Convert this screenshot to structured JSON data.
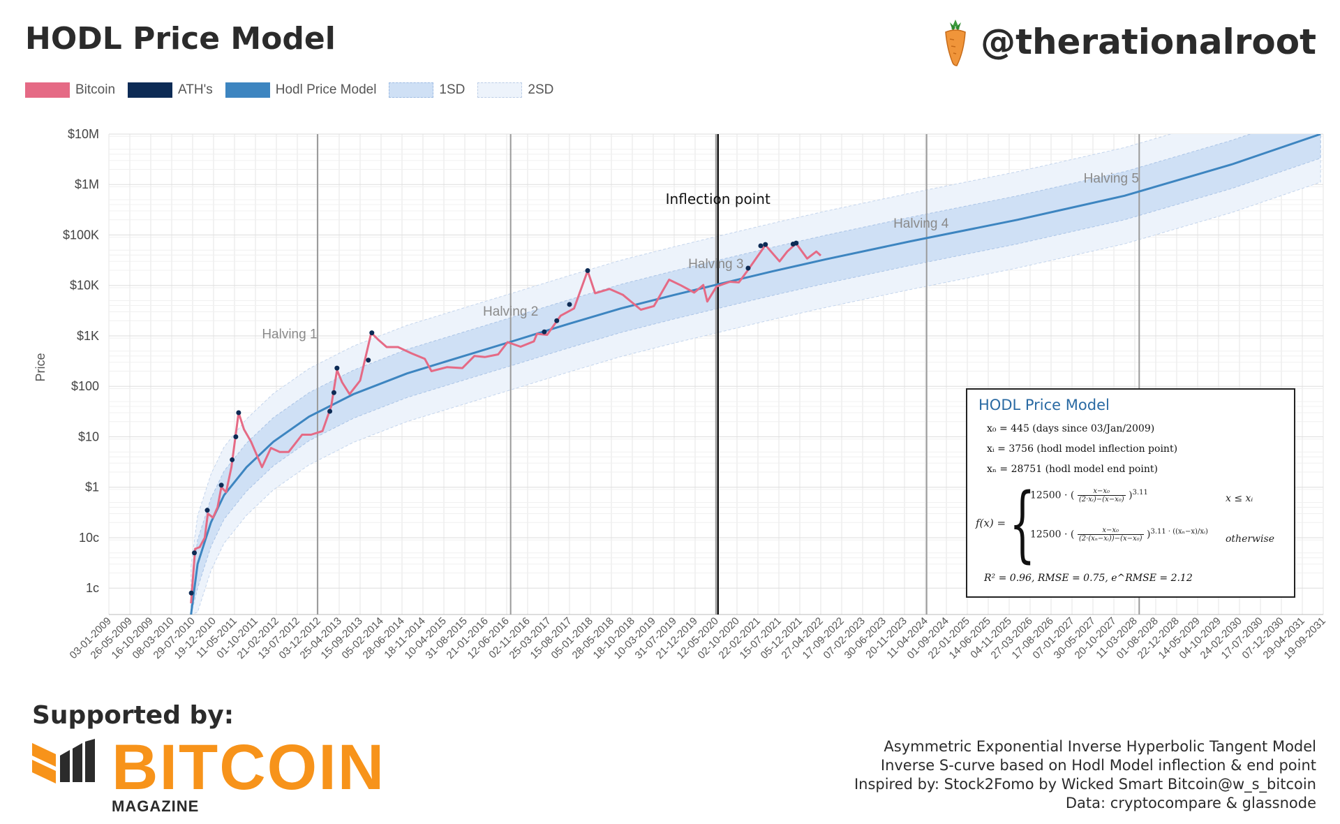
{
  "header": {
    "title": "HODL Price Model",
    "handle": "@therationalroot"
  },
  "legend": {
    "items": [
      "Bitcoin",
      "ATH's",
      "Hodl Price Model",
      "1SD",
      "2SD"
    ]
  },
  "colors": {
    "bitcoin": "#e56a85",
    "ath": "#0d2b55",
    "model": "#3d85c0",
    "band_1sd": "#cfe0f5",
    "band_2sd": "#edf3fb"
  },
  "chart_data": {
    "type": "line",
    "y_scale": "log",
    "ylabel": "Price",
    "y_ticks": [
      {
        "value": 0.01,
        "label": "1c"
      },
      {
        "value": 0.1,
        "label": "10c"
      },
      {
        "value": 1,
        "label": "$1"
      },
      {
        "value": 10,
        "label": "$10"
      },
      {
        "value": 100,
        "label": "$100"
      },
      {
        "value": 1000,
        "label": "$1K"
      },
      {
        "value": 10000,
        "label": "$10K"
      },
      {
        "value": 100000,
        "label": "$100K"
      },
      {
        "value": 1000000,
        "label": "$1M"
      },
      {
        "value": 10000000,
        "label": "$10M"
      }
    ],
    "ylim": [
      0.003,
      10000000
    ],
    "xlim": [
      "2009-01-03",
      "2031-09-19"
    ],
    "x_ticks": [
      "03-01-2009",
      "26-05-2009",
      "16-10-2009",
      "08-03-2010",
      "29-07-2010",
      "19-12-2010",
      "11-05-2011",
      "01-10-2011",
      "21-02-2012",
      "13-07-2012",
      "03-12-2012",
      "25-04-2013",
      "15-09-2013",
      "05-02-2014",
      "28-06-2014",
      "18-11-2014",
      "10-04-2015",
      "31-08-2015",
      "21-01-2016",
      "12-06-2016",
      "02-11-2016",
      "25-03-2017",
      "15-08-2017",
      "05-01-2018",
      "28-05-2018",
      "18-10-2018",
      "10-03-2019",
      "31-07-2019",
      "21-12-2019",
      "12-05-2020",
      "02-10-2020",
      "22-02-2021",
      "15-07-2021",
      "05-12-2021",
      "27-04-2022",
      "17-09-2022",
      "07-02-2023",
      "30-06-2023",
      "20-11-2023",
      "11-04-2024",
      "01-09-2024",
      "22-01-2025",
      "14-06-2025",
      "04-11-2025",
      "27-03-2026",
      "17-08-2026",
      "07-01-2027",
      "30-05-2027",
      "20-10-2027",
      "11-03-2028",
      "01-08-2028",
      "22-12-2028",
      "14-05-2029",
      "04-10-2029",
      "24-02-2030",
      "17-07-2030",
      "07-12-2030",
      "29-04-2031",
      "19-09-2031"
    ],
    "grid": true,
    "legend_position": "top-left",
    "vertical_lines": [
      {
        "date": "2012-11-28",
        "label": "Halving 1"
      },
      {
        "date": "2016-07-09",
        "label": "Halving 2"
      },
      {
        "date": "2020-05-11",
        "label": "Halving 3"
      },
      {
        "date": "2024-04-19",
        "label": "Halving 4"
      },
      {
        "date": "2028-04-10",
        "label": "Halving 5"
      }
    ],
    "inflection": {
      "date": "2019-04-15",
      "label": "Inflection point"
    },
    "inflection_line_date": "2020-05-25",
    "model_points": [
      {
        "date": "2010-07-18",
        "value": 0.003
      },
      {
        "date": "2010-09-01",
        "value": 0.03
      },
      {
        "date": "2010-12-01",
        "value": 0.2
      },
      {
        "date": "2011-03-01",
        "value": 0.7
      },
      {
        "date": "2011-08-01",
        "value": 2.5
      },
      {
        "date": "2012-02-01",
        "value": 8
      },
      {
        "date": "2012-10-01",
        "value": 25
      },
      {
        "date": "2013-08-01",
        "value": 70
      },
      {
        "date": "2014-08-01",
        "value": 180
      },
      {
        "date": "2015-08-01",
        "value": 380
      },
      {
        "date": "2016-08-01",
        "value": 800
      },
      {
        "date": "2017-08-01",
        "value": 1700
      },
      {
        "date": "2018-08-01",
        "value": 3500
      },
      {
        "date": "2019-08-01",
        "value": 6500
      },
      {
        "date": "2020-05-25",
        "value": 10500
      },
      {
        "date": "2021-06-01",
        "value": 19000
      },
      {
        "date": "2022-06-01",
        "value": 33000
      },
      {
        "date": "2024-01-01",
        "value": 75000
      },
      {
        "date": "2026-01-01",
        "value": 200000
      },
      {
        "date": "2028-01-01",
        "value": 600000
      },
      {
        "date": "2030-01-01",
        "value": 2500000
      },
      {
        "date": "2031-09-01",
        "value": 10000000
      }
    ],
    "sd1_factor": 3.0,
    "sd2_factor": 9.0,
    "bitcoin_series": [
      {
        "date": "2010-07-18",
        "value": 0.005
      },
      {
        "date": "2010-08-15",
        "value": 0.06
      },
      {
        "date": "2010-09-15",
        "value": 0.065
      },
      {
        "date": "2010-10-20",
        "value": 0.1
      },
      {
        "date": "2010-11-10",
        "value": 0.3
      },
      {
        "date": "2010-12-15",
        "value": 0.25
      },
      {
        "date": "2011-01-15",
        "value": 0.4
      },
      {
        "date": "2011-02-10",
        "value": 1.0
      },
      {
        "date": "2011-03-15",
        "value": 0.8
      },
      {
        "date": "2011-04-20",
        "value": 2.5
      },
      {
        "date": "2011-06-08",
        "value": 30
      },
      {
        "date": "2011-07-15",
        "value": 14
      },
      {
        "date": "2011-09-01",
        "value": 8
      },
      {
        "date": "2011-11-15",
        "value": 2.5
      },
      {
        "date": "2012-01-15",
        "value": 6
      },
      {
        "date": "2012-03-15",
        "value": 5
      },
      {
        "date": "2012-05-15",
        "value": 5
      },
      {
        "date": "2012-08-15",
        "value": 11
      },
      {
        "date": "2012-10-15",
        "value": 11
      },
      {
        "date": "2013-01-01",
        "value": 13
      },
      {
        "date": "2013-03-01",
        "value": 40
      },
      {
        "date": "2013-04-10",
        "value": 210
      },
      {
        "date": "2013-05-15",
        "value": 120
      },
      {
        "date": "2013-07-05",
        "value": 70
      },
      {
        "date": "2013-09-15",
        "value": 130
      },
      {
        "date": "2013-11-30",
        "value": 1150
      },
      {
        "date": "2014-01-15",
        "value": 850
      },
      {
        "date": "2014-03-15",
        "value": 600
      },
      {
        "date": "2014-06-01",
        "value": 600
      },
      {
        "date": "2014-09-01",
        "value": 450
      },
      {
        "date": "2014-12-01",
        "value": 350
      },
      {
        "date": "2015-01-15",
        "value": 200
      },
      {
        "date": "2015-05-01",
        "value": 240
      },
      {
        "date": "2015-08-15",
        "value": 230
      },
      {
        "date": "2015-11-05",
        "value": 400
      },
      {
        "date": "2016-01-15",
        "value": 380
      },
      {
        "date": "2016-04-15",
        "value": 430
      },
      {
        "date": "2016-06-18",
        "value": 750
      },
      {
        "date": "2016-09-15",
        "value": 610
      },
      {
        "date": "2016-12-15",
        "value": 780
      },
      {
        "date": "2017-01-05",
        "value": 1100
      },
      {
        "date": "2017-03-15",
        "value": 1050
      },
      {
        "date": "2017-06-15",
        "value": 2500
      },
      {
        "date": "2017-09-15",
        "value": 3500
      },
      {
        "date": "2017-12-17",
        "value": 19500
      },
      {
        "date": "2018-02-06",
        "value": 7000
      },
      {
        "date": "2018-05-15",
        "value": 8500
      },
      {
        "date": "2018-08-15",
        "value": 6500
      },
      {
        "date": "2018-12-15",
        "value": 3300
      },
      {
        "date": "2019-03-15",
        "value": 3900
      },
      {
        "date": "2019-06-26",
        "value": 13000
      },
      {
        "date": "2019-09-15",
        "value": 10000
      },
      {
        "date": "2019-12-15",
        "value": 7200
      },
      {
        "date": "2020-02-15",
        "value": 10200
      },
      {
        "date": "2020-03-13",
        "value": 4800
      },
      {
        "date": "2020-05-15",
        "value": 9500
      },
      {
        "date": "2020-08-15",
        "value": 11800
      },
      {
        "date": "2020-10-15",
        "value": 11500
      },
      {
        "date": "2020-12-15",
        "value": 20000
      },
      {
        "date": "2021-04-14",
        "value": 63000
      },
      {
        "date": "2021-07-20",
        "value": 30000
      },
      {
        "date": "2021-09-10",
        "value": 47000
      },
      {
        "date": "2021-11-10",
        "value": 68000
      },
      {
        "date": "2022-01-24",
        "value": 34000
      },
      {
        "date": "2022-03-28",
        "value": 47000
      },
      {
        "date": "2022-04-27",
        "value": 39000
      }
    ],
    "ath_series": [
      {
        "date": "2010-07-20",
        "value": 0.008
      },
      {
        "date": "2010-08-10",
        "value": 0.05
      },
      {
        "date": "2010-11-06",
        "value": 0.35
      },
      {
        "date": "2011-02-10",
        "value": 1.1
      },
      {
        "date": "2011-04-25",
        "value": 3.5
      },
      {
        "date": "2011-05-20",
        "value": 10
      },
      {
        "date": "2011-06-08",
        "value": 30
      },
      {
        "date": "2013-02-20",
        "value": 32
      },
      {
        "date": "2013-03-20",
        "value": 75
      },
      {
        "date": "2013-04-10",
        "value": 230
      },
      {
        "date": "2013-11-10",
        "value": 330
      },
      {
        "date": "2013-12-04",
        "value": 1150
      },
      {
        "date": "2017-02-24",
        "value": 1200
      },
      {
        "date": "2017-05-20",
        "value": 2000
      },
      {
        "date": "2017-08-15",
        "value": 4200
      },
      {
        "date": "2017-12-17",
        "value": 19700
      },
      {
        "date": "2020-12-17",
        "value": 22000
      },
      {
        "date": "2021-03-13",
        "value": 61000
      },
      {
        "date": "2021-04-14",
        "value": 64800
      },
      {
        "date": "2021-10-20",
        "value": 66000
      },
      {
        "date": "2021-11-10",
        "value": 69000
      }
    ]
  },
  "formula": {
    "title": "HODL Price Model",
    "x0": "x₀  =  445 (days since 03/Jan/2009)",
    "xi": "xᵢ  =  3756 (hodl model inflection point)",
    "xn": "xₙ  =  28751 (hodl model end point)",
    "fx": "f(x) =",
    "case1_coef": "12500 ·",
    "case1_num": "x−x₀",
    "case1_den": "(2·xᵢ)−(x−x₀)",
    "case1_exp": "3.11",
    "case1_cond": "x ≤ xᵢ",
    "case2_coef": "12500 ·",
    "case2_num": "x−x₀",
    "case2_den": "(2·(xₙ−xᵢ))−(x−x₀)",
    "case2_exp": "3.11 · ((xₙ−x)/xᵢ)",
    "case2_cond": "otherwise",
    "fit": "R² = 0.96,   RMSE = 0.75,   e^RMSE = 2.12"
  },
  "footer": {
    "supported": "Supported by:",
    "brand": "BITCOIN",
    "brand_sub": "MAGAZINE",
    "notes": [
      "Asymmetric Exponential Inverse Hyperbolic Tangent Model",
      "Inverse S-curve based on Hodl Model inflection & end point",
      "Inspired by: Stock2Fomo by Wicked Smart Bitcoin@w_s_bitcoin",
      "Data: cryptocompare & glassnode"
    ]
  }
}
